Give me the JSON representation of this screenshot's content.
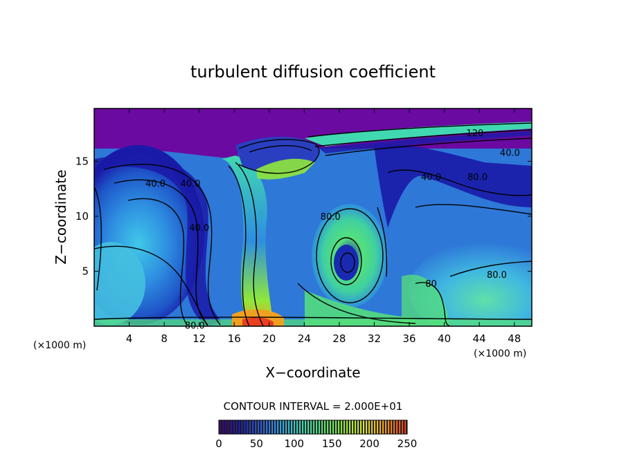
{
  "chart_data": {
    "type": "heatmap",
    "title": "turbulent diffusion coefficient",
    "xlabel": "X−coordinate",
    "ylabel": "Z−coordinate",
    "x_unit_left": "(×1000 m)",
    "x_unit_right": "(×1000 m)",
    "xlim": [
      0,
      50
    ],
    "ylim": [
      0,
      19.8
    ],
    "x_ticks": [
      4,
      8,
      12,
      16,
      20,
      24,
      28,
      32,
      36,
      40,
      44,
      48
    ],
    "y_ticks": [
      5,
      10,
      15
    ],
    "contour_interval_text": "CONTOUR INTERVAL = 2.000E+01",
    "contour_labels": [
      {
        "text": "40.0",
        "x": 7.0,
        "y": 13.0
      },
      {
        "text": "40.0",
        "x": 11.0,
        "y": 13.0
      },
      {
        "text": "40.0",
        "x": 12.0,
        "y": 9.0
      },
      {
        "text": "40.0",
        "x": 38.5,
        "y": 13.6
      },
      {
        "text": "40.0",
        "x": 47.5,
        "y": 15.8
      },
      {
        "text": "80.0",
        "x": 27.0,
        "y": 10.0
      },
      {
        "text": "80.0",
        "x": 43.8,
        "y": 13.6
      },
      {
        "text": "80.0",
        "x": 46.0,
        "y": 4.7
      },
      {
        "text": "80.0",
        "x": 11.5,
        "y": 0.1
      },
      {
        "text": "120",
        "x": 43.5,
        "y": 17.6
      },
      {
        "text": "80",
        "x": 38.5,
        "y": 3.9
      }
    ],
    "colorbar": {
      "min": 0,
      "max": 250,
      "ticks": [
        0,
        50,
        100,
        150,
        200,
        250
      ],
      "colors": [
        "#3d006f",
        "#1a1aa8",
        "#2e5bd8",
        "#2ea6e8",
        "#40d8b0",
        "#55e07a",
        "#8fe83a",
        "#d8e830",
        "#f0a020",
        "#e84020"
      ]
    },
    "features": [
      {
        "name": "cloud-anvil-top",
        "value_level": "low"
      },
      {
        "name": "updraft-core",
        "value_level": "high"
      },
      {
        "name": "mid-eddy",
        "value_level": "medium"
      }
    ]
  }
}
